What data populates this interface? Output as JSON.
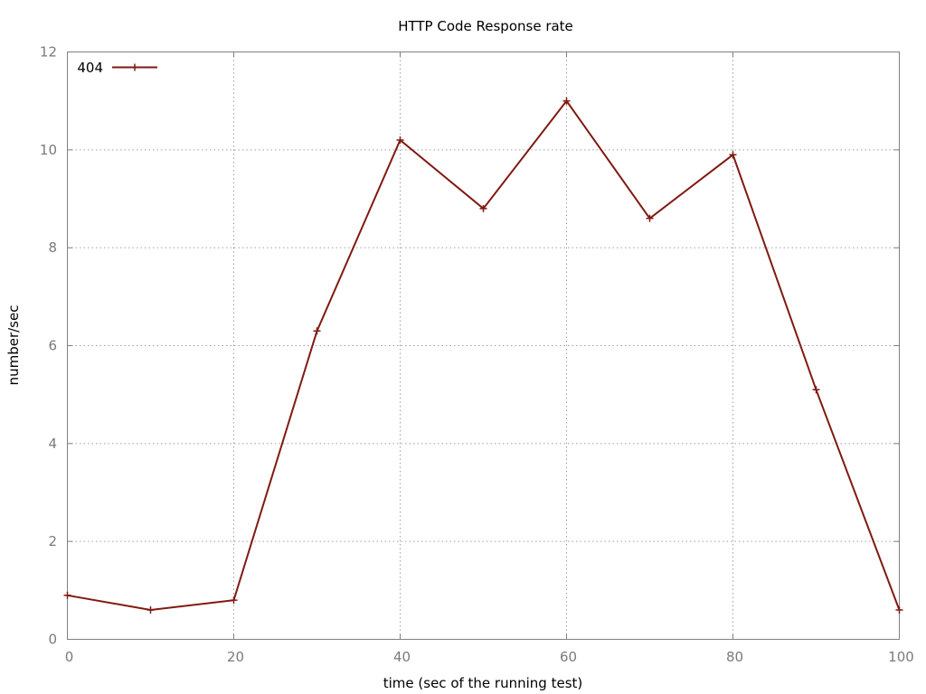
{
  "chart_data": {
    "type": "line",
    "title": "HTTP Code Response rate",
    "xlabel": "time (sec of the running test)",
    "ylabel": "number/sec",
    "xlim": [
      0,
      100
    ],
    "ylim": [
      0,
      12
    ],
    "x_ticks": [
      0,
      20,
      40,
      60,
      80,
      100
    ],
    "y_ticks": [
      0,
      2,
      4,
      6,
      8,
      10,
      12
    ],
    "grid": true,
    "legend_position": "top-left",
    "series": [
      {
        "name": "404",
        "color": "#7f1a12",
        "marker": "plus",
        "x": [
          0,
          10,
          20,
          30,
          40,
          50,
          60,
          70,
          80,
          90,
          100
        ],
        "y": [
          0.9,
          0.6,
          0.8,
          6.3,
          10.2,
          8.8,
          11.0,
          8.6,
          9.9,
          5.1,
          0.6
        ]
      }
    ]
  }
}
